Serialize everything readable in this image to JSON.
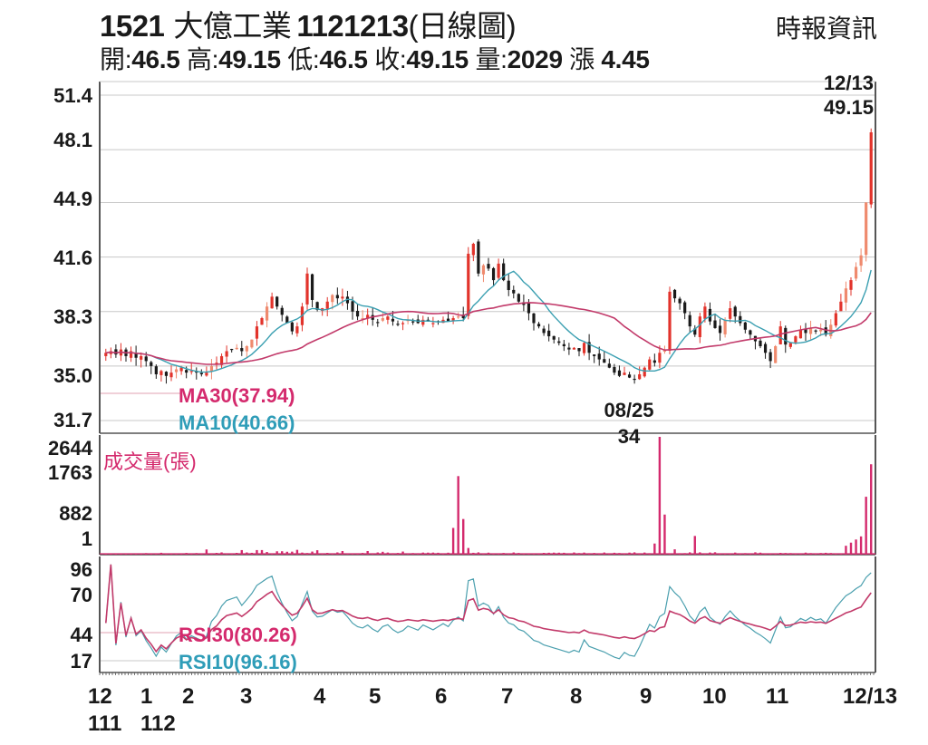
{
  "header": {
    "code": "1521",
    "name": "大億工業",
    "date": "1121213",
    "chart_kind": "(日線圖)",
    "source": "時報資訊"
  },
  "quote": {
    "open_label": "開:",
    "open": "46.5",
    "high_label": "高:",
    "high": "49.15",
    "low_label": "低:",
    "low": "46.5",
    "close_label": "收:",
    "close": "49.15",
    "volume_label": "量:",
    "volume": "2029",
    "change_label": "漲",
    "change": "4.45"
  },
  "colors": {
    "up": "#e2332b",
    "up_light": "#ef8a6e",
    "down": "#1a1a1a",
    "ma30": "#c23a6a",
    "ma10": "#3a9fb1",
    "volume": "#d42a6d",
    "rsi30": "#c23a6a",
    "rsi10": "#4a9fae",
    "grid": "#c8c8c8",
    "axis": "#555555"
  },
  "price_pane": {
    "y_ticks": [
      "51.4",
      "48.1",
      "44.9",
      "41.6",
      "38.3",
      "35.0",
      "31.7"
    ],
    "ma30_legend": "MA30(37.94)",
    "ma10_legend": "MA10(40.66)",
    "high_annotation": {
      "date": "12/13",
      "value": "49.15"
    },
    "low_annotation": {
      "date": "08/25",
      "value": "34"
    }
  },
  "volume_pane": {
    "title": "成交量(張)",
    "y_ticks": [
      "2644",
      "1763",
      "882",
      "1"
    ]
  },
  "rsi_pane": {
    "y_ticks": [
      "96",
      "70",
      "44",
      "17"
    ],
    "rsi30_legend": "RSI30(80.26)",
    "rsi10_legend": "RSI10(96.16)"
  },
  "x_axis": {
    "labels": [
      "12",
      "1",
      "2",
      "3",
      "4",
      "5",
      "6",
      "7",
      "8",
      "9",
      "10",
      "11",
      "12/13"
    ],
    "year_labels": [
      "111",
      "112"
    ]
  },
  "chart_data": {
    "type": "candlestick",
    "title": "1521 大億工業 1121213(日線圖)",
    "xlabel": "",
    "ylabel": "",
    "x_range": [
      "2022-12",
      "2023-12-13"
    ],
    "price_ylim": [
      31.7,
      51.4
    ],
    "price_ticks": [
      51.4,
      48.1,
      44.9,
      41.6,
      38.3,
      35.0,
      31.7
    ],
    "volume_ylim": [
      1,
      2644
    ],
    "volume_ticks": [
      2644,
      1763,
      882,
      1
    ],
    "rsi_ticks": [
      96,
      70,
      44,
      17
    ],
    "month_labels": [
      "12",
      "1",
      "2",
      "3",
      "4",
      "5",
      "6",
      "7",
      "8",
      "9",
      "10",
      "11",
      "12/13"
    ],
    "monthly_close_approx": {
      "2022-12": 35.6,
      "2023-01": 34.6,
      "2023-02": 35.4,
      "2023-03": 37.6,
      "2023-04": 38.0,
      "2023-05": 37.8,
      "2023-06": 37.9,
      "2023-07": 38.2,
      "2023-08": 34.5,
      "2023-09": 36.3,
      "2023-10": 36.5,
      "2023-11": 36.6,
      "2023-12-13": 49.15
    },
    "close_series": [
      35.8,
      35.9,
      35.7,
      36.0,
      35.6,
      35.9,
      35.5,
      35.6,
      35.3,
      35.0,
      34.5,
      34.7,
      34.4,
      34.6,
      34.8,
      34.9,
      34.6,
      34.7,
      34.6,
      34.5,
      34.6,
      35.0,
      35.2,
      35.6,
      35.9,
      36.0,
      36.1,
      35.9,
      36.2,
      36.6,
      37.4,
      37.9,
      38.6,
      39.2,
      38.6,
      38.1,
      37.6,
      37.1,
      37.4,
      38.6,
      40.6,
      39.0,
      38.4,
      38.5,
      38.9,
      39.3,
      39.1,
      39.2,
      38.8,
      38.3,
      38.0,
      37.9,
      38.1,
      37.8,
      37.6,
      37.9,
      38.0,
      37.7,
      37.5,
      37.6,
      37.8,
      37.7,
      37.6,
      37.8,
      37.7,
      37.6,
      37.7,
      37.8,
      37.7,
      37.9,
      38.0,
      37.9,
      41.8,
      42.4,
      40.6,
      41.1,
      40.9,
      40.2,
      41.2,
      40.2,
      39.6,
      39.4,
      38.9,
      38.7,
      38.2,
      37.6,
      37.4,
      37.0,
      36.8,
      36.6,
      36.4,
      36.2,
      36.0,
      36.1,
      35.9,
      36.4,
      35.8,
      35.6,
      35.4,
      35.2,
      34.9,
      34.6,
      34.4,
      34.6,
      34.3,
      34.2,
      34.5,
      34.9,
      35.4,
      35.2,
      35.8,
      36.0,
      39.5,
      39.1,
      38.8,
      38.2,
      37.4,
      36.9,
      38.0,
      38.6,
      37.7,
      37.3,
      37.0,
      37.8,
      38.5,
      38.0,
      37.6,
      37.2,
      36.9,
      36.5,
      36.2,
      35.8,
      35.3,
      36.2,
      37.4,
      36.3,
      36.4,
      36.8,
      37.2,
      37.0,
      37.3,
      37.1,
      37.2,
      36.9,
      37.5,
      38.2,
      38.9,
      39.7,
      40.2,
      41.0,
      41.7,
      44.9,
      49.15
    ],
    "volume_spikes": [
      {
        "month": "2023-06 end",
        "value": 1763
      },
      {
        "month": "2023-09 mid",
        "value": 2644
      },
      {
        "month": "2023-12-13",
        "value": 2029
      }
    ],
    "ma30_last": 37.94,
    "ma10_last": 40.66,
    "rsi30_last": 80.26,
    "rsi10_last": 96.16,
    "annotations": [
      {
        "label": "12/13 49.15",
        "type": "high"
      },
      {
        "label": "08/25 34",
        "type": "low"
      }
    ]
  }
}
